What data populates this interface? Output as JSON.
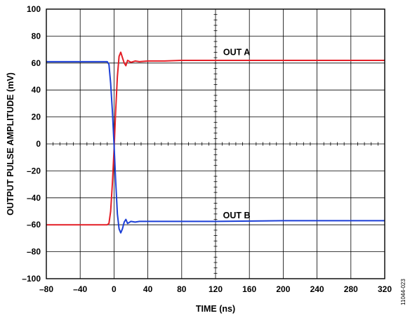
{
  "chart_data": {
    "type": "line",
    "title": "",
    "xlabel": "TIME (ns)",
    "ylabel": "OUTPUT PULSE AMPLITUDE (mV)",
    "xlim": [
      -80,
      320
    ],
    "ylim": [
      -100,
      100
    ],
    "x_ticks": [
      "–80",
      "–40",
      "0",
      "40",
      "80",
      "120",
      "160",
      "200",
      "240",
      "280",
      "320"
    ],
    "y_ticks": [
      "100",
      "80",
      "60",
      "40",
      "20",
      "0",
      "–20",
      "–40",
      "–60",
      "–80",
      "–100"
    ],
    "x_tick_values": [
      -80,
      -40,
      0,
      40,
      80,
      120,
      160,
      200,
      240,
      280,
      320
    ],
    "y_tick_values": [
      100,
      80,
      60,
      40,
      20,
      0,
      -20,
      -40,
      -60,
      -80,
      -100
    ],
    "grid": true,
    "minor_ticks": "on center axes",
    "series": [
      {
        "name": "OUT A",
        "color": "#e41e26",
        "x": [
          -80,
          -20,
          -8,
          -6,
          -4,
          -2,
          0,
          2,
          4,
          6,
          8,
          10,
          12,
          14,
          16,
          20,
          25,
          30,
          40,
          60,
          80,
          120,
          200,
          320
        ],
        "y": [
          -60,
          -60,
          -60,
          -59,
          -50,
          -30,
          -5,
          25,
          50,
          65,
          68,
          64,
          60,
          58,
          62,
          60.5,
          61.5,
          61,
          61.5,
          61.5,
          62,
          62,
          62,
          62
        ]
      },
      {
        "name": "OUT B",
        "color": "#1c3fd6",
        "x": [
          -80,
          -20,
          -8,
          -6,
          -4,
          -2,
          0,
          2,
          4,
          6,
          8,
          10,
          12,
          14,
          16,
          20,
          25,
          30,
          40,
          60,
          80,
          120,
          200,
          320
        ],
        "y": [
          61,
          61,
          61,
          59,
          45,
          25,
          0,
          -28,
          -52,
          -63,
          -66,
          -63,
          -58,
          -56,
          -59,
          -57.5,
          -58,
          -57.5,
          -57.5,
          -57.5,
          -57.5,
          -57.5,
          -57,
          -57
        ]
      }
    ],
    "annotations": [
      {
        "text": "OUT A",
        "x": 145,
        "y": 68
      },
      {
        "text": "OUT B",
        "x": 145,
        "y": -53
      }
    ]
  },
  "figure_id": "11044-023"
}
